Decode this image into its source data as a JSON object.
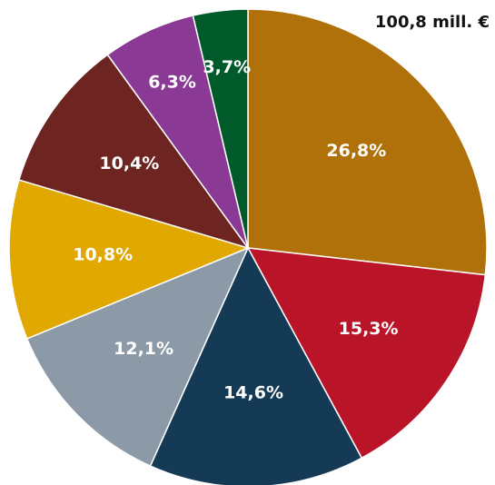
{
  "chart_data": {
    "type": "pie",
    "total_label": "100,8 mill. €",
    "slices": [
      {
        "label": "26,8%",
        "value": 26.8,
        "color": "#B0710B"
      },
      {
        "label": "15,3%",
        "value": 15.3,
        "color": "#BA1428"
      },
      {
        "label": "14,6%",
        "value": 14.6,
        "color": "#143A55"
      },
      {
        "label": "12,1%",
        "value": 12.1,
        "color": "#8C9AA8"
      },
      {
        "label": "10,8%",
        "value": 10.8,
        "color": "#E0A800"
      },
      {
        "label": "10,4%",
        "value": 10.4,
        "color": "#6E2420"
      },
      {
        "label": "6,3%",
        "value": 6.3,
        "color": "#8A3A94"
      },
      {
        "label": "3,7%",
        "value": 3.7,
        "color": "#005A2A"
      }
    ]
  }
}
